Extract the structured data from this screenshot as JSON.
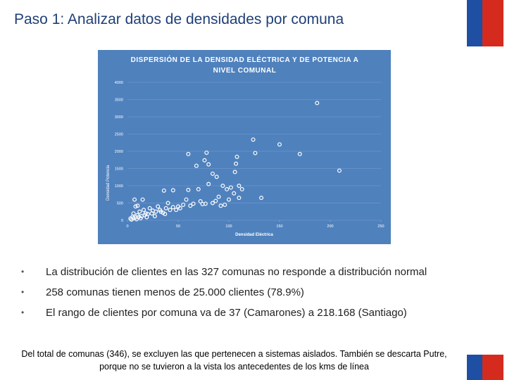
{
  "slide": {
    "title": "Paso 1: Analizar datos de densidades por comuna",
    "bullets": [
      "La distribución de clientes en las 327 comunas no responde a distribución normal",
      "258 comunas tienen menos de 25.000 clientes (78.9%)",
      "El rango de clientes por comuna va de 37 (Camarones) a 218.168 (Santiago)"
    ],
    "footnote": "Del total de comunas (346), se excluyen las que pertenecen a sistemas aislados. También se descarta Putre, porque  no se tuvieron a la vista los antecedentes de los kms de línea"
  },
  "chart_data": {
    "type": "scatter",
    "title": "DISPERSIÓN DE LA DENSIDAD ELÉCTRICA Y DE POTENCIA A NIVEL COMUNAL",
    "x_label": "Densidad Eléctrica",
    "y_label": "Densidad Potencia",
    "color": "#ffffff",
    "background": "#4f81bd",
    "grid": true,
    "xlim": [
      0,
      250
    ],
    "xticks": [
      0,
      50,
      100,
      150,
      200,
      250
    ],
    "ylim": [
      0,
      4000
    ],
    "yticks": [
      0,
      500,
      1000,
      1500,
      2000,
      2500,
      3000,
      3500,
      4000
    ],
    "x": [
      187,
      150,
      170,
      124,
      126,
      209,
      60,
      78,
      76,
      68,
      80,
      84,
      88,
      108,
      107,
      106,
      80,
      94,
      98,
      102,
      110,
      113,
      105,
      132,
      70,
      60,
      45,
      36,
      110,
      100,
      90,
      87,
      84,
      77,
      74,
      65,
      58,
      55,
      50,
      45,
      3,
      5,
      6,
      8,
      10,
      12,
      14,
      16,
      18,
      20,
      22,
      25,
      28,
      30,
      32,
      35,
      38,
      40,
      42,
      8,
      7,
      10,
      15,
      4,
      6,
      9,
      11,
      13,
      17,
      19,
      24,
      27,
      33,
      37,
      48,
      52,
      62,
      72,
      92,
      96
    ],
    "values": [
      3400,
      2200,
      1920,
      2340,
      1950,
      1440,
      1920,
      1960,
      1740,
      1580,
      1620,
      1350,
      1260,
      1840,
      1640,
      1400,
      1050,
      1000,
      900,
      950,
      1000,
      900,
      780,
      650,
      900,
      880,
      870,
      860,
      650,
      600,
      680,
      560,
      500,
      480,
      470,
      480,
      600,
      450,
      400,
      380,
      50,
      100,
      200,
      80,
      150,
      250,
      120,
      300,
      200,
      180,
      350,
      280,
      250,
      400,
      300,
      220,
      350,
      500,
      300,
      400,
      600,
      420,
      600,
      20,
      60,
      30,
      100,
      60,
      150,
      90,
      200,
      120,
      250,
      180,
      300,
      350,
      420,
      550,
      420,
      450
    ]
  }
}
